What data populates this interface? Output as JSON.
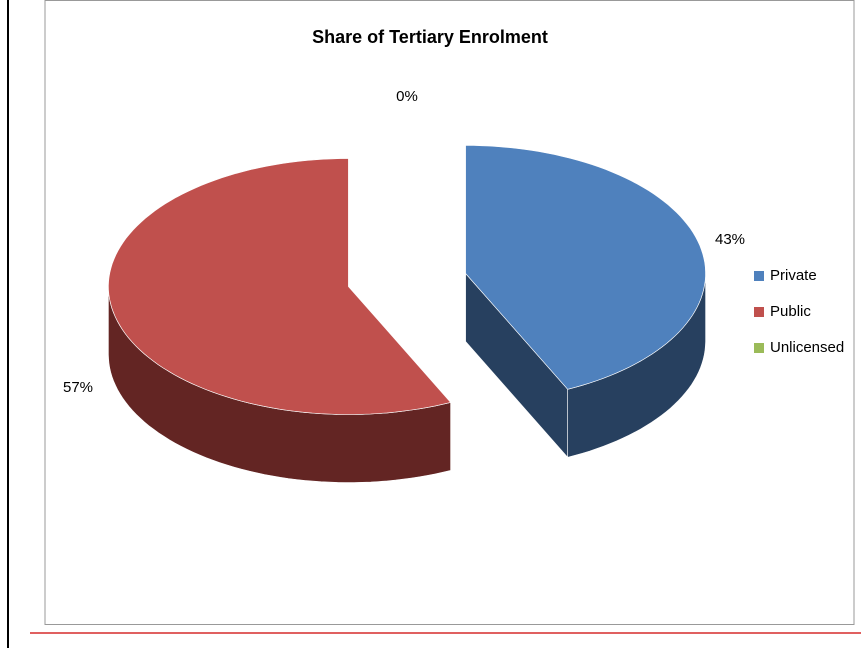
{
  "chart_data": {
    "type": "pie",
    "title": "Share of Tertiary Enrolment",
    "categories": [
      "Private",
      "Public",
      "Unlicensed"
    ],
    "values": [
      43,
      57,
      0
    ],
    "value_labels": [
      "43%",
      "57%",
      "0%"
    ],
    "colors": [
      "#4f81bd",
      "#c0504d",
      "#9bbb59"
    ],
    "side_colors": [
      "#27405f",
      "#632523",
      "#5a6e33"
    ],
    "legend": "right"
  }
}
